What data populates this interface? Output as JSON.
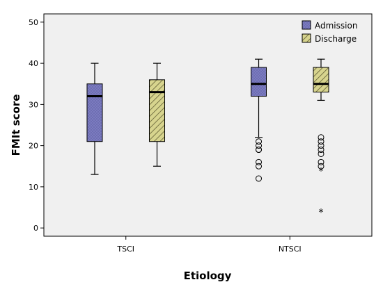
{
  "chart_data": {
    "type": "box",
    "xlabel": "Etiology",
    "ylabel": "FMIt score",
    "ylim": [
      -2,
      52
    ],
    "yticks": [
      0,
      10,
      20,
      30,
      40,
      50
    ],
    "categories": [
      "TSCI",
      "NTSCI"
    ],
    "legend_position": "top-right",
    "grid": false,
    "series": [
      {
        "name": "Admission",
        "color": "#7b7bc0",
        "pattern": "dots",
        "boxes": [
          {
            "category": "TSCI",
            "min": 13,
            "q1": 21,
            "median": 32,
            "q3": 35,
            "max": 40,
            "outliers": [],
            "extremes": []
          },
          {
            "category": "NTSCI",
            "min": 22,
            "q1": 32,
            "median": 35,
            "q3": 39,
            "max": 41,
            "outliers": [
              21,
              20,
              19,
              19,
              16,
              15,
              12
            ],
            "extremes": []
          }
        ]
      },
      {
        "name": "Discharge",
        "color": "#d7d48e",
        "pattern": "diagonal-hatch",
        "boxes": [
          {
            "category": "TSCI",
            "min": 15,
            "q1": 21,
            "median": 33,
            "q3": 36,
            "max": 40,
            "outliers": [],
            "extremes": []
          },
          {
            "category": "NTSCI",
            "min": 31,
            "q1": 33,
            "median": 35,
            "q3": 39,
            "max": 41,
            "outliers": [
              22,
              21,
              20,
              19,
              18,
              16,
              15
            ],
            "extremes": [
              14,
              4
            ]
          }
        ]
      }
    ]
  }
}
